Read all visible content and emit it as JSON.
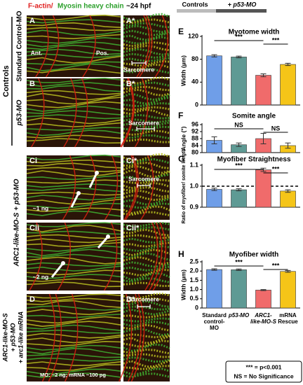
{
  "header": {
    "title_red": "F-actin/",
    "title_green": "Myosin heavy chain",
    "stage": "~24 hpf",
    "controls": "Controls",
    "p53": "+ p53-MO"
  },
  "row_labels": {
    "controls": "Controls",
    "standard": "Standard Control-MO",
    "p53": "p53-MO",
    "arc": "ARC1-like-MO-S + p53-MO",
    "rescue": [
      "ARC1-like-MO-S",
      "+ p53-MO",
      "+ arc1-like mRNA"
    ]
  },
  "image_panels": [
    {
      "label": "A",
      "texts": [
        "Ant.",
        "Pos."
      ]
    },
    {
      "label": "A*",
      "texts": [
        "Sarcomere"
      ]
    },
    {
      "label": "B",
      "texts": []
    },
    {
      "label": "B*",
      "texts": [
        "Sarcomere"
      ]
    },
    {
      "label": "Ci",
      "texts": [
        "~1 ng"
      ]
    },
    {
      "label": "Ci*",
      "texts": [
        "Sarcomere"
      ]
    },
    {
      "label": "Cii",
      "texts": [
        "~2 ng"
      ]
    },
    {
      "label": "Cii*",
      "texts": []
    },
    {
      "label": "D",
      "texts": [
        "MO: ~2 ng; mRNA ~100 pg"
      ]
    },
    {
      "label": "D*",
      "texts": [
        "Sarcomere"
      ]
    }
  ],
  "chart_data": [
    {
      "type": "bar",
      "panel": "E",
      "title": "Myotome width",
      "y_label": "Width (µm)",
      "ylim": [
        0,
        120
      ],
      "yticks": [
        0,
        40,
        80,
        120
      ],
      "colors": [
        "#6f9ee8",
        "#5e9a94",
        "#f06b6b",
        "#f5c518"
      ],
      "values": [
        86,
        84,
        52,
        71
      ],
      "errors": [
        2,
        1.5,
        2.5,
        2
      ],
      "annotations": [
        "***",
        "***"
      ]
    },
    {
      "type": "bar",
      "panel": "F",
      "title": "Somite angle",
      "y_label": "Angle (°)",
      "ylim": [
        80,
        96
      ],
      "yticks": [
        80,
        84,
        88,
        92,
        96
      ],
      "colors": [
        "#6f9ee8",
        "#5e9a94",
        "#f06b6b",
        "#f5c518"
      ],
      "values": [
        87,
        84.5,
        88,
        84
      ],
      "errors": [
        2,
        1,
        3,
        1.5
      ],
      "annotations": [
        "NS",
        "NS"
      ]
    },
    {
      "type": "bar",
      "panel": "G",
      "title": "Myofiber Straightness",
      "y_label": "Ratio of myofiber/ somite length",
      "ylim": [
        0.9,
        1.1
      ],
      "yticks": [
        0.9,
        {
          "value": 1,
          "label": "1.0"
        },
        1.1
      ],
      "colors": [
        "#6f9ee8",
        "#5e9a94",
        "#f06b6b",
        "#f5c518"
      ],
      "values": [
        0.985,
        0.983,
        1.078,
        0.977
      ],
      "errors": [
        0.006,
        0.005,
        0.008,
        0.006
      ],
      "annotations": [
        "***",
        "***"
      ]
    },
    {
      "type": "bar",
      "panel": "H",
      "title": "Myofiber width",
      "y_label": "Width (µm)",
      "ylim": [
        0,
        2.5
      ],
      "yticks": [
        0,
        0.5,
        {
          "value": 1,
          "label": "1.0"
        },
        1.5,
        {
          "value": 2,
          "label": "2.0"
        },
        2.5
      ],
      "colors": [
        "#6f9ee8",
        "#5e9a94",
        "#f06b6b",
        "#f5c518"
      ],
      "values": [
        2.08,
        2.07,
        0.97,
        1.98
      ],
      "errors": [
        0.04,
        0.04,
        0.03,
        0.05
      ],
      "annotations": [
        "***",
        "***"
      ],
      "categories": [
        "Standard control-MO",
        "p53-MO",
        "ARC1-like-MO-S",
        "mRNA Rescue"
      ]
    }
  ],
  "legend": [
    "*** = p<0.001",
    "NS = No Significance"
  ]
}
